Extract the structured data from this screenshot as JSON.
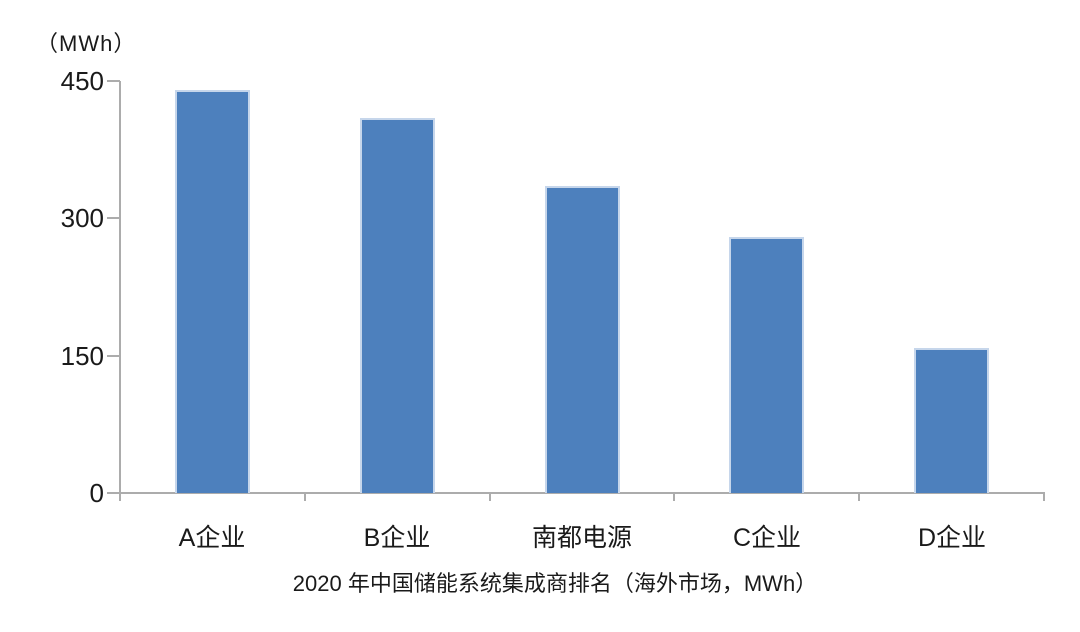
{
  "page": {
    "background_color": "#ffffff"
  },
  "chart_data": {
    "type": "bar",
    "title": "2020 年中国储能系统集成商排名（海外市场，MWh）",
    "ylabel": "（MWh）",
    "xlabel": "",
    "categories": [
      "A企业",
      "B企业",
      "南都电源",
      "C企业",
      "D企业"
    ],
    "values": [
      440,
      410,
      335,
      280,
      158
    ],
    "yticks": [
      0,
      150,
      300,
      450
    ],
    "ylim": [
      0,
      450
    ],
    "grid": false,
    "legend": false,
    "bar_color": "#4D80BD",
    "bar_border_color": "#C6D6EB",
    "axis_color": "#ACACAC",
    "text_color": "#1A1A1A"
  }
}
